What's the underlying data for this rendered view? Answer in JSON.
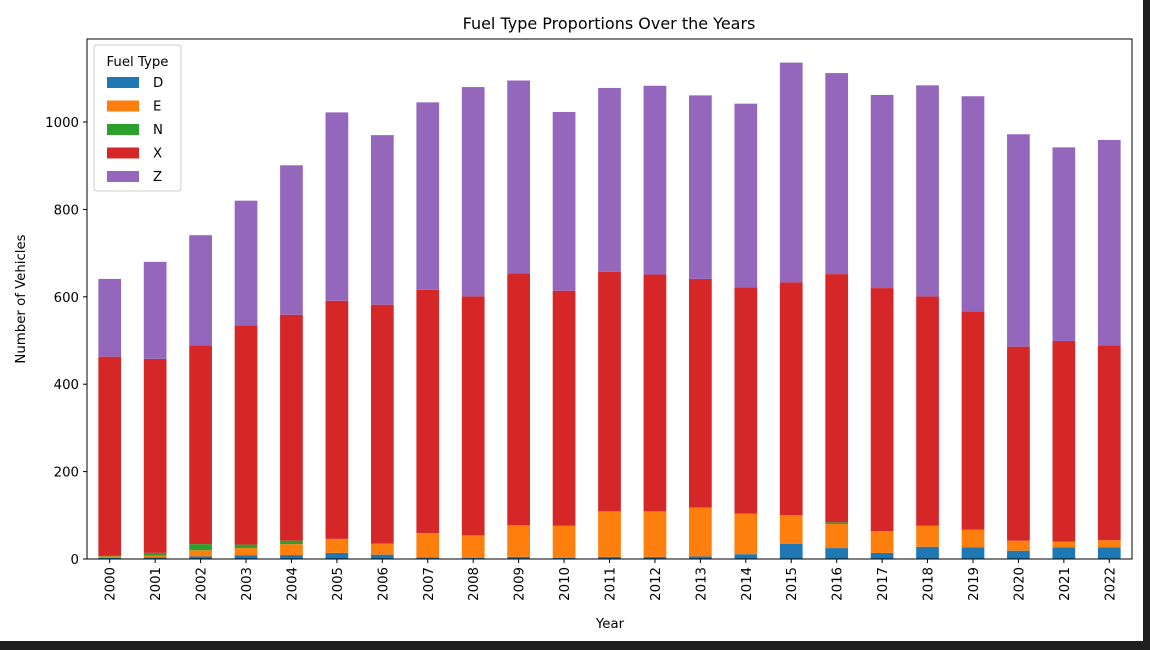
{
  "chart_data": {
    "type": "bar",
    "stacked": true,
    "title": "Fuel Type Proportions Over the Years",
    "xlabel": "Year",
    "ylabel": "Number of Vehicles",
    "ylim": [
      0,
      1190
    ],
    "yticks": [
      0,
      200,
      400,
      600,
      800,
      1000
    ],
    "grid": false,
    "legend": {
      "title": "Fuel Type",
      "placement": "upper-left"
    },
    "categories": [
      "2000",
      "2001",
      "2002",
      "2003",
      "2004",
      "2005",
      "2006",
      "2007",
      "2008",
      "2009",
      "2010",
      "2011",
      "2012",
      "2013",
      "2014",
      "2015",
      "2016",
      "2017",
      "2018",
      "2019",
      "2020",
      "2021",
      "2022"
    ],
    "series": [
      {
        "name": "D",
        "color": "#1f77b4",
        "values": [
          3,
          4,
          6,
          8,
          9,
          14,
          10,
          4,
          3,
          5,
          3,
          5,
          5,
          6,
          11,
          35,
          25,
          14,
          28,
          27,
          19,
          27,
          27
        ]
      },
      {
        "name": "E",
        "color": "#ff7f0e",
        "values": [
          3,
          4,
          14,
          17,
          25,
          32,
          25,
          55,
          51,
          72,
          73,
          104,
          104,
          112,
          93,
          65,
          55,
          50,
          48,
          40,
          23,
          13,
          16
        ]
      },
      {
        "name": "N",
        "color": "#2ca02c",
        "values": [
          2,
          6,
          14,
          8,
          8,
          0,
          0,
          0,
          0,
          0,
          0,
          0,
          0,
          0,
          0,
          0,
          4,
          0,
          0,
          0,
          0,
          0,
          0
        ]
      },
      {
        "name": "X",
        "color": "#d62728",
        "values": [
          455,
          444,
          455,
          502,
          517,
          545,
          547,
          557,
          547,
          577,
          538,
          548,
          542,
          523,
          518,
          533,
          568,
          556,
          525,
          500,
          444,
          459,
          446
        ]
      },
      {
        "name": "Z",
        "color": "#9467bd",
        "values": [
          178,
          222,
          252,
          285,
          342,
          431,
          388,
          429,
          479,
          441,
          409,
          421,
          432,
          420,
          420,
          503,
          460,
          442,
          483,
          492,
          486,
          443,
          470
        ]
      }
    ]
  }
}
